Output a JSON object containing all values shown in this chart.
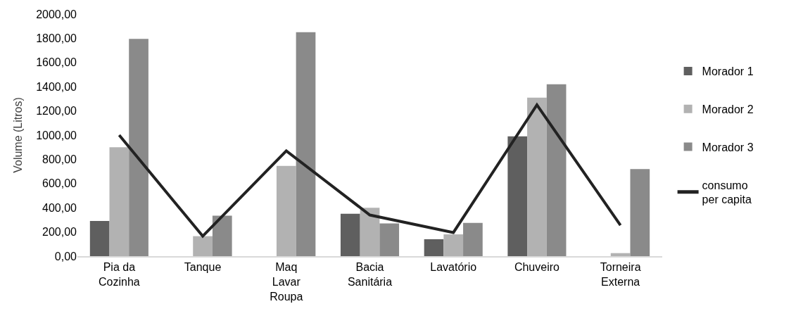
{
  "chart_data": {
    "type": "bar",
    "ylabel": "Volume (Litros)",
    "categories": [
      "Pia da\nCozinha",
      "Tanque",
      "Maq\nLavar\nRoupa",
      "Bacia\nSanitária",
      "Lavatório",
      "Chuveiro",
      "Torneira\nExterna"
    ],
    "series": [
      {
        "name": "Morador 1",
        "color": "#5f5f5f",
        "values": [
          290,
          0,
          0,
          350,
          140,
          990,
          0
        ]
      },
      {
        "name": "Morador 2",
        "color": "#b2b2b2",
        "values": [
          900,
          165,
          745,
          400,
          180,
          1310,
          25
        ]
      },
      {
        "name": "Morador 3",
        "color": "#8a8a8a",
        "values": [
          1795,
          335,
          1850,
          270,
          275,
          1420,
          720
        ]
      },
      {
        "name": "consumo\nper capita",
        "type": "line",
        "color": "#222222",
        "values": [
          1000,
          165,
          870,
          340,
          195,
          1250,
          255
        ]
      }
    ],
    "ylim": [
      0,
      2000
    ],
    "yticks": [
      {
        "value": 0,
        "label": "0,00"
      },
      {
        "value": 200,
        "label": "200,00"
      },
      {
        "value": 400,
        "label": "400,00"
      },
      {
        "value": 600,
        "label": "600,00"
      },
      {
        "value": 800,
        "label": "800,00"
      },
      {
        "value": 1000,
        "label": "1000,00"
      },
      {
        "value": 1200,
        "label": "1200,00"
      },
      {
        "value": 1400,
        "label": "1400,00"
      },
      {
        "value": 1600,
        "label": "1600,00"
      },
      {
        "value": 1800,
        "label": "1800,00"
      },
      {
        "value": 2000,
        "label": "2000,00"
      }
    ],
    "legend": "right",
    "marker": "none",
    "line_style": "solid"
  }
}
